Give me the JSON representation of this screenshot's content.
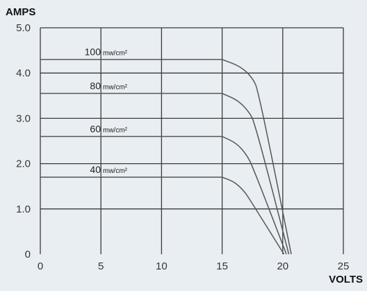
{
  "chart_data": {
    "type": "line",
    "ylabel": "AMPS",
    "xlabel": "VOLTS",
    "xlim": [
      0,
      25
    ],
    "ylim": [
      0,
      5
    ],
    "x_ticks": [
      "0",
      "5",
      "10",
      "15",
      "20",
      "25"
    ],
    "y_ticks": [
      "0",
      "1.0",
      "2.0",
      "3.0",
      "4.0",
      "5.0"
    ],
    "grid": true,
    "series_unit": "mw/cm²",
    "series": [
      {
        "name": "100",
        "x": [
          0,
          15,
          16.5,
          17.5,
          18,
          20.7
        ],
        "y": [
          4.3,
          4.3,
          4.15,
          3.9,
          3.6,
          0
        ]
      },
      {
        "name": "80",
        "x": [
          0,
          15,
          16.3,
          17.2,
          17.7,
          20.5
        ],
        "y": [
          3.55,
          3.55,
          3.4,
          3.15,
          2.9,
          0
        ]
      },
      {
        "name": "60",
        "x": [
          0,
          15,
          16.2,
          17.0,
          17.5,
          20.3
        ],
        "y": [
          2.6,
          2.6,
          2.45,
          2.2,
          1.95,
          0
        ]
      },
      {
        "name": "40",
        "x": [
          0,
          15,
          16.0,
          16.8,
          17.3,
          20.1
        ],
        "y": [
          1.7,
          1.7,
          1.6,
          1.4,
          1.2,
          0
        ]
      }
    ]
  },
  "colors": {
    "background": "#e9eef3",
    "grid": "#3a3a3a",
    "curve": "#555555"
  }
}
